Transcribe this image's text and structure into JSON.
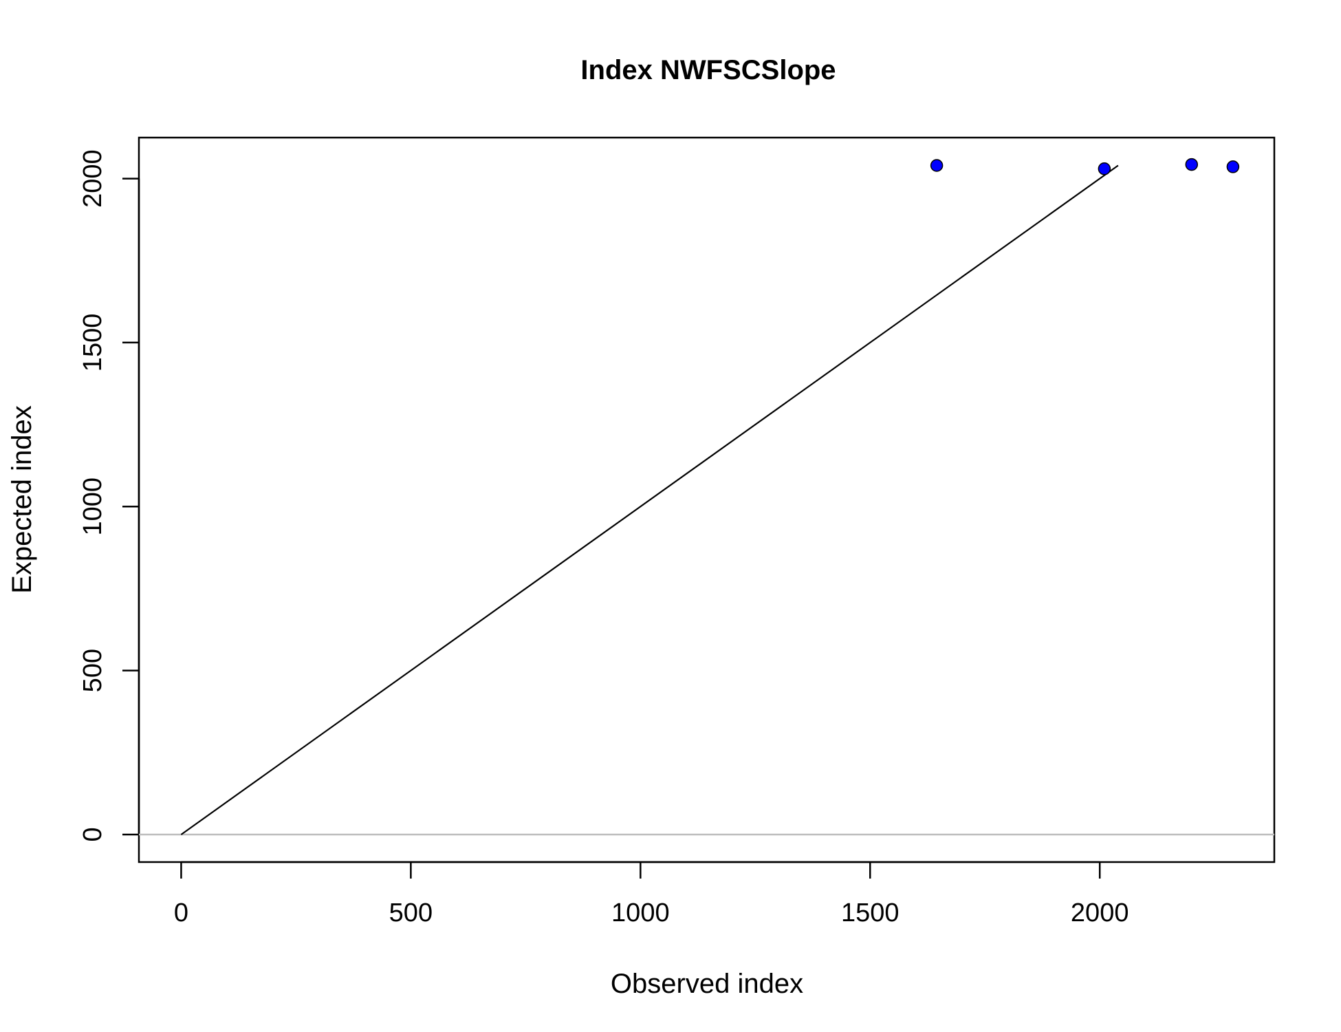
{
  "chart_data": {
    "type": "scatter",
    "title": "Index NWFSCSlope",
    "xlabel": "Observed index",
    "ylabel": "Expected index",
    "xlim": [
      -92,
      2380
    ],
    "ylim": [
      -84,
      2125
    ],
    "x_ticks": [
      0,
      500,
      1000,
      1500,
      2000
    ],
    "y_ticks": [
      0,
      500,
      1000,
      1500,
      2000
    ],
    "x_tick_labels": [
      "0",
      "500",
      "1000",
      "1500",
      "2000"
    ],
    "y_tick_labels": [
      "0",
      "500",
      "1000",
      "1500",
      "2000"
    ],
    "series": [
      {
        "x": [
          1645,
          2010,
          2200,
          2290
        ],
        "y": [
          2040,
          2030,
          2043,
          2036
        ],
        "color": "#0000ff"
      }
    ],
    "reference_line": {
      "from": [
        0,
        0
      ],
      "to": [
        2040,
        2040
      ],
      "color": "#000000"
    },
    "zero_line": {
      "y": 0,
      "color": "#bebebe"
    },
    "grid": false,
    "legend": "none"
  }
}
